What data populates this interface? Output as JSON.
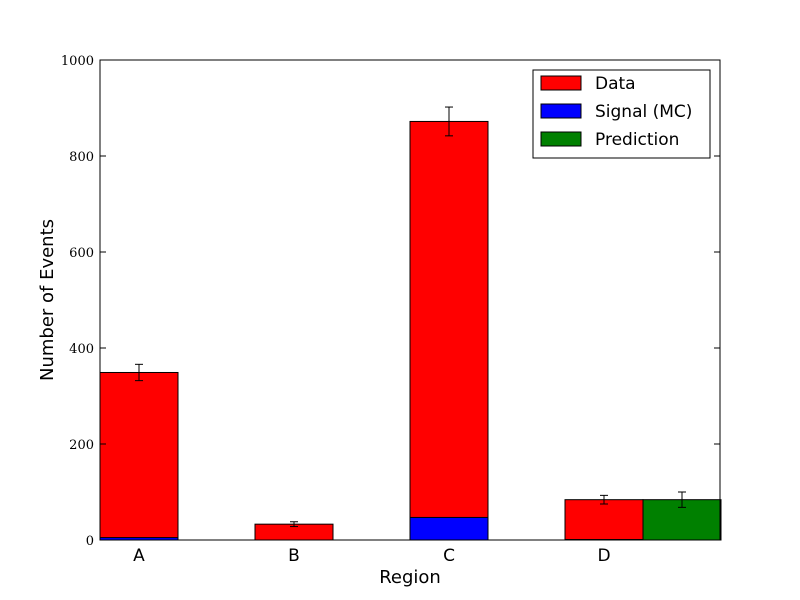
{
  "chart_data": {
    "type": "bar",
    "xlabel": "Region",
    "ylabel": "Number of Events",
    "ylim": [
      0,
      1000
    ],
    "yticks": [
      0,
      200,
      400,
      600,
      800,
      1000
    ],
    "categories": [
      "A",
      "B",
      "C",
      "D"
    ],
    "series": [
      {
        "name": "Data",
        "color": "#ff0000",
        "values": [
          349,
          33,
          872,
          84
        ],
        "errors": [
          17,
          5,
          30,
          9
        ]
      },
      {
        "name": "Signal (MC)",
        "color": "#0000ff",
        "values": [
          5,
          0,
          47,
          1
        ]
      },
      {
        "name": "Prediction",
        "color": "#008000",
        "values": [
          null,
          null,
          null,
          84
        ],
        "errors": [
          null,
          null,
          null,
          16
        ]
      }
    ],
    "legend": {
      "position": "top-right",
      "entries": [
        "Data",
        "Signal (MC)",
        "Prediction"
      ]
    },
    "grid": false
  }
}
